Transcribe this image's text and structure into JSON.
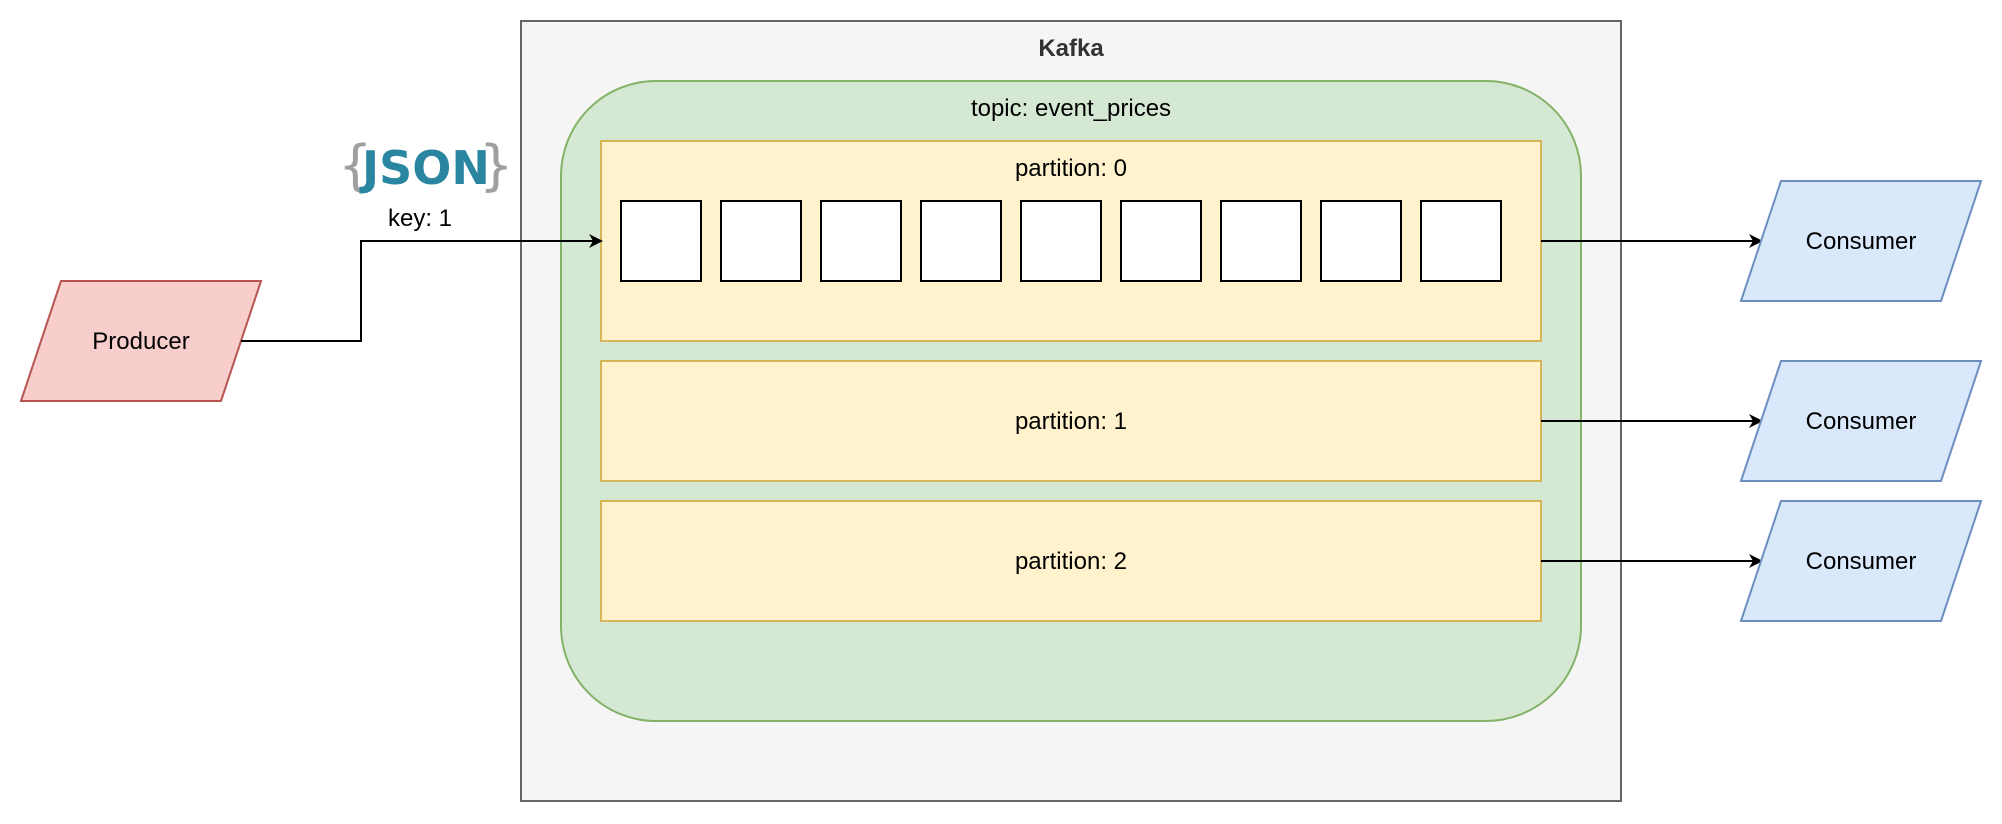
{
  "colors": {
    "kafka_fill": "#f5f5f5",
    "kafka_stroke": "#666666",
    "topic_fill": "#d5e8d4",
    "topic_stroke": "#82b366",
    "partition_fill": "#fff2cc",
    "partition_stroke": "#d6b656",
    "producer_fill": "#f8cecc",
    "producer_stroke": "#b85450",
    "consumer_fill": "#dae8fc",
    "consumer_stroke": "#6c8ebf",
    "json_brace": "#a0a0a0",
    "json_text": "#2a86a0"
  },
  "kafka": {
    "label": "Kafka"
  },
  "topic": {
    "label": "topic: event_prices"
  },
  "partitions": [
    {
      "label": "partition: 0",
      "message_slots": 9
    },
    {
      "label": "partition: 1"
    },
    {
      "label": "partition: 2"
    }
  ],
  "producer": {
    "label": "Producer"
  },
  "message": {
    "format_logo": {
      "open_brace": "{",
      "text": "JSON",
      "close_brace": "}"
    },
    "key_label": "key: 1"
  },
  "consumers": [
    {
      "label": "Consumer"
    },
    {
      "label": "Consumer"
    },
    {
      "label": "Consumer"
    }
  ]
}
